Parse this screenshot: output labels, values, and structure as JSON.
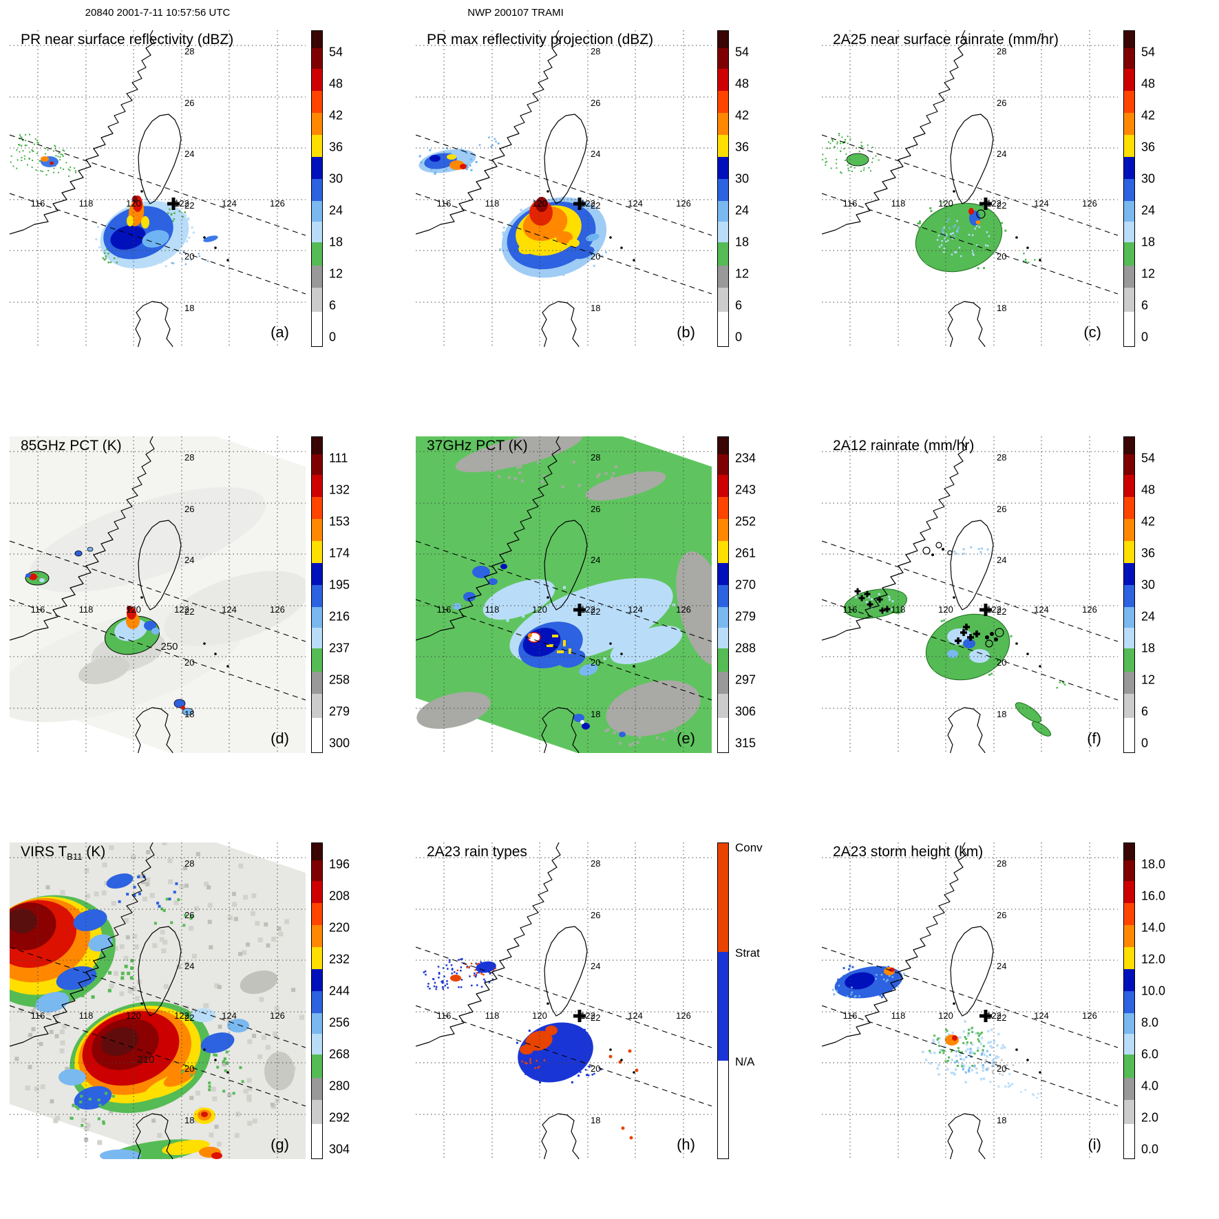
{
  "header": {
    "left": "20840 2001-7-11 10:57:56 UTC",
    "center": "NWP 200107 TRAMI"
  },
  "map_labels": {
    "lon": [
      "116",
      "118",
      "120",
      "122",
      "124",
      "126"
    ],
    "lat": [
      "28",
      "26",
      "24",
      "22",
      "20",
      "18"
    ]
  },
  "palettes": {
    "standard": [
      "#3a0505",
      "#7f0000",
      "#cc0000",
      "#ff4400",
      "#ff8800",
      "#ffdf00",
      "#0011bb",
      "#2d62e0",
      "#7ab8f0",
      "#b9ddf8",
      "#55bb55",
      "#999999",
      "#cccccc",
      "#ffffff"
    ],
    "raintype": [
      "#e84400",
      "#1a35d6",
      "#ffffff"
    ]
  },
  "chart_data": {
    "type": "map_grid",
    "grid": "3x3",
    "panels": [
      {
        "id": "a",
        "title": "PR near surface reflectivity (dBZ)",
        "letter": "(a)",
        "colorbar": {
          "palette": "standard",
          "ticks": [
            "54",
            "48",
            "42",
            "36",
            "30",
            "24",
            "18",
            "12",
            "6",
            "0"
          ]
        }
      },
      {
        "id": "b",
        "title": "PR max reflectivity projection (dBZ)",
        "letter": "(b)",
        "colorbar": {
          "palette": "standard",
          "ticks": [
            "54",
            "48",
            "42",
            "36",
            "30",
            "24",
            "18",
            "12",
            "6",
            "0"
          ]
        }
      },
      {
        "id": "c",
        "title": "2A25 near surface rainrate (mm/hr)",
        "letter": "(c)",
        "colorbar": {
          "palette": "standard",
          "ticks": [
            "54",
            "48",
            "42",
            "36",
            "30",
            "24",
            "18",
            "12",
            "6",
            "0"
          ]
        }
      },
      {
        "id": "d",
        "title": "85GHz PCT (K)",
        "letter": "(d)",
        "annotation": "250",
        "colorbar": {
          "palette": "standard",
          "ticks": [
            "111",
            "132",
            "153",
            "174",
            "195",
            "216",
            "237",
            "258",
            "279",
            "300"
          ]
        }
      },
      {
        "id": "e",
        "title": "37GHz PCT (K)",
        "letter": "(e)",
        "colorbar": {
          "palette": "standard",
          "ticks": [
            "234",
            "243",
            "252",
            "261",
            "270",
            "279",
            "288",
            "297",
            "306",
            "315"
          ]
        }
      },
      {
        "id": "f",
        "title": "2A12 rainrate (mm/hr)",
        "letter": "(f)",
        "colorbar": {
          "palette": "standard",
          "ticks": [
            "54",
            "48",
            "42",
            "36",
            "30",
            "24",
            "18",
            "12",
            "6",
            "0"
          ]
        }
      },
      {
        "id": "g",
        "title": "VIRS TB11 (K)",
        "title_parts": {
          "pre": "VIRS T",
          "sub": "B11",
          "post": " (K)"
        },
        "letter": "(g)",
        "annotation": "210",
        "colorbar": {
          "palette": "standard",
          "ticks": [
            "196",
            "208",
            "220",
            "232",
            "244",
            "256",
            "268",
            "280",
            "292",
            "304"
          ]
        }
      },
      {
        "id": "h",
        "title": "2A23 rain types",
        "letter": "(h)",
        "colorbar": {
          "palette": "raintype",
          "labels": [
            "Conv",
            "Strat",
            "N/A"
          ]
        }
      },
      {
        "id": "i",
        "title": "2A23 storm height (km)",
        "letter": "(i)",
        "colorbar": {
          "palette": "standard",
          "ticks": [
            "18.0",
            "16.0",
            "14.0",
            "12.0",
            "10.0",
            "8.0",
            "6.0",
            "4.0",
            "2.0",
            "0.0"
          ]
        }
      }
    ]
  }
}
